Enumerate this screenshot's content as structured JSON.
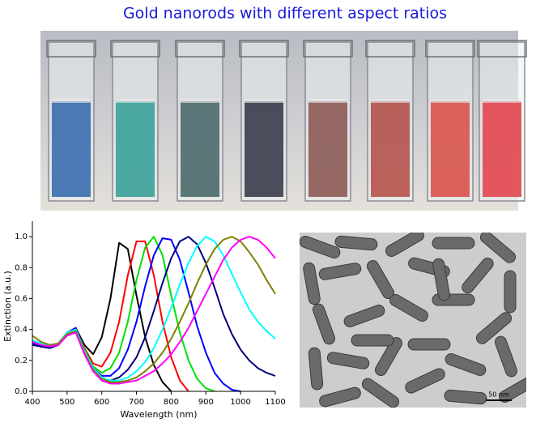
{
  "title": "Gold nanorods with different aspect ratios",
  "scale_bar": "50 nm",
  "chart_data": {
    "type": "line",
    "xlabel": "Wavelength (nm)",
    "ylabel": "Extinction (a.u.)",
    "xlim": [
      400,
      1100
    ],
    "ylim": [
      0,
      1.1
    ],
    "xticks": [
      400,
      500,
      600,
      700,
      800,
      900,
      1000,
      1100
    ],
    "yticks": [
      {
        "value": 0,
        "label": "0.0"
      },
      0.2,
      0.4,
      0.6,
      0.8,
      {
        "value": 1,
        "label": "1.0"
      }
    ],
    "x": [
      400,
      425,
      450,
      475,
      500,
      525,
      550,
      575,
      600,
      625,
      650,
      675,
      700,
      725,
      750,
      775,
      800,
      825,
      850,
      875,
      900,
      925,
      950,
      975,
      1000,
      1025,
      1050,
      1075,
      1100
    ],
    "series": [
      {
        "color": "#000000",
        "values": [
          0.32,
          0.3,
          0.29,
          0.31,
          0.38,
          0.41,
          0.3,
          0.24,
          0.35,
          0.6,
          0.96,
          0.92,
          0.62,
          0.35,
          0.17,
          0.06,
          0.0,
          null,
          null,
          null,
          null,
          null,
          null,
          null,
          null,
          null,
          null,
          null,
          null
        ]
      },
      {
        "color": "#ff0000",
        "values": [
          0.3,
          0.29,
          0.28,
          0.3,
          0.37,
          0.4,
          0.28,
          0.18,
          0.16,
          0.25,
          0.45,
          0.75,
          0.97,
          0.97,
          0.75,
          0.45,
          0.22,
          0.07,
          0.0,
          null,
          null,
          null,
          null,
          null,
          null,
          null,
          null,
          null,
          null
        ]
      },
      {
        "color": "#00e000",
        "values": [
          0.31,
          0.3,
          0.29,
          0.31,
          0.38,
          0.41,
          0.27,
          0.16,
          0.12,
          0.15,
          0.25,
          0.45,
          0.72,
          0.93,
          1.0,
          0.88,
          0.62,
          0.38,
          0.2,
          0.08,
          0.02,
          0.0,
          null,
          null,
          null,
          null,
          null,
          null,
          null
        ]
      },
      {
        "color": "#0000ff",
        "values": [
          0.31,
          0.29,
          0.28,
          0.3,
          0.38,
          0.41,
          0.26,
          0.15,
          0.1,
          0.1,
          0.15,
          0.27,
          0.45,
          0.68,
          0.88,
          0.99,
          0.98,
          0.85,
          0.64,
          0.42,
          0.25,
          0.12,
          0.05,
          0.01,
          0.0,
          null,
          null,
          null,
          null
        ]
      },
      {
        "color": "#000080",
        "values": [
          0.3,
          0.29,
          0.28,
          0.3,
          0.37,
          0.4,
          0.25,
          0.14,
          0.08,
          0.07,
          0.09,
          0.14,
          0.22,
          0.35,
          0.52,
          0.7,
          0.86,
          0.97,
          1.0,
          0.95,
          0.83,
          0.67,
          0.5,
          0.37,
          0.27,
          0.2,
          0.15,
          0.12,
          0.1
        ]
      },
      {
        "color": "#00ffff",
        "values": [
          0.33,
          0.31,
          0.3,
          0.31,
          0.38,
          0.4,
          0.26,
          0.15,
          0.09,
          0.07,
          0.07,
          0.09,
          0.13,
          0.19,
          0.28,
          0.4,
          0.54,
          0.69,
          0.83,
          0.94,
          1.0,
          0.97,
          0.88,
          0.76,
          0.64,
          0.53,
          0.45,
          0.39,
          0.34
        ]
      },
      {
        "color": "#808000",
        "values": [
          0.36,
          0.32,
          0.3,
          0.31,
          0.37,
          0.39,
          0.25,
          0.14,
          0.08,
          0.06,
          0.06,
          0.07,
          0.09,
          0.13,
          0.18,
          0.25,
          0.34,
          0.45,
          0.57,
          0.7,
          0.82,
          0.92,
          0.98,
          1.0,
          0.97,
          0.9,
          0.82,
          0.72,
          0.63
        ]
      },
      {
        "color": "#ff00ff",
        "values": [
          0.32,
          0.3,
          0.29,
          0.3,
          0.36,
          0.38,
          0.24,
          0.13,
          0.07,
          0.05,
          0.05,
          0.06,
          0.07,
          0.1,
          0.13,
          0.18,
          0.24,
          0.32,
          0.41,
          0.52,
          0.63,
          0.74,
          0.85,
          0.93,
          0.98,
          1.0,
          0.98,
          0.93,
          0.86
        ]
      }
    ]
  }
}
